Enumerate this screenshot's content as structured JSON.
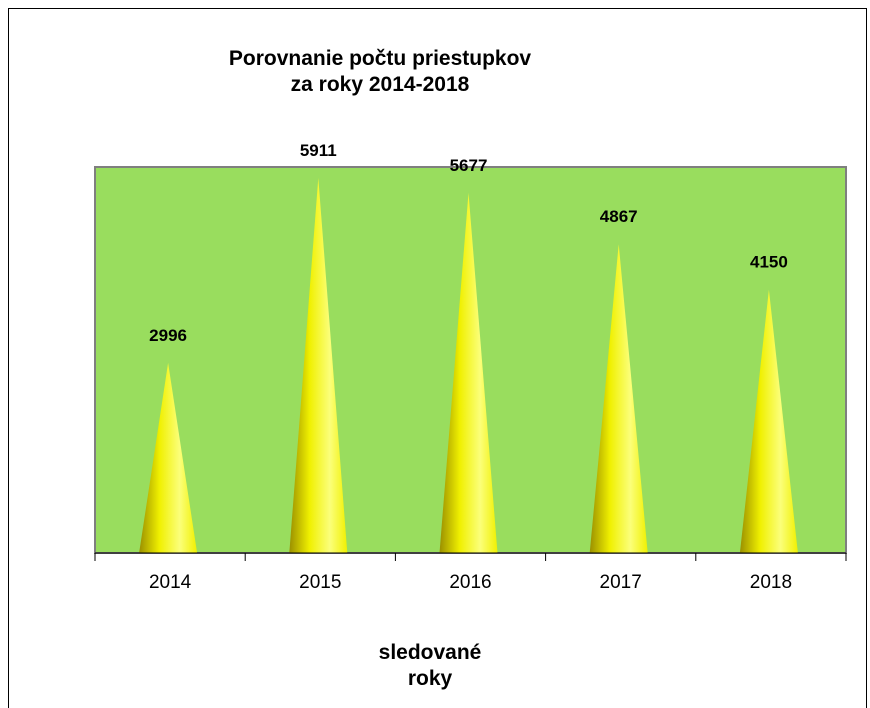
{
  "chart_data": {
    "type": "bar",
    "title_line1": "Porovnanie počtu priestupkov",
    "title_line2": "za roky 2014-2018",
    "xlabel_line1": "sledované",
    "xlabel_line2": "roky",
    "ylabel": "",
    "categories": [
      "2014",
      "2015",
      "2016",
      "2017",
      "2018"
    ],
    "values": [
      2996,
      5911,
      5677,
      4867,
      4150
    ],
    "ylim": [
      0,
      6000
    ],
    "bar_shape": "cone",
    "grid": false,
    "legend": "none",
    "colors": {
      "plot_background": "#99dd5e",
      "plot_border": "#7f7f7f",
      "bar_light": "#fbff7a",
      "bar_mid": "#f0f000",
      "bar_dark": "#9a8f00"
    }
  }
}
